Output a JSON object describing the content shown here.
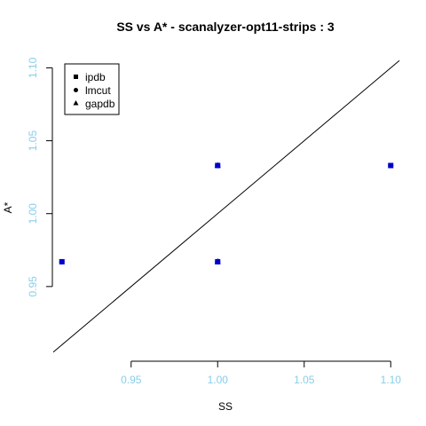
{
  "chart_data": {
    "type": "scatter",
    "title": "SS vs A* - scanalyzer-opt11-strips : 3",
    "xlabel": "SS",
    "ylabel": "A*",
    "xlim": [
      0.905,
      1.105
    ],
    "ylim": [
      0.9,
      1.11
    ],
    "x_ticks": [
      "0.95",
      "1.00",
      "1.05",
      "1.10"
    ],
    "y_ticks": [
      "0.95",
      "1.00",
      "1.05",
      "1.10"
    ],
    "series": [
      {
        "name": "ipdb",
        "marker": "square",
        "points": [
          [
            0.91,
            0.967
          ],
          [
            1.1,
            1.033
          ],
          [
            1.0,
            1.033
          ],
          [
            1.0,
            0.967
          ]
        ]
      },
      {
        "name": "lmcut",
        "marker": "circle",
        "points": [
          [
            0.91,
            0.967
          ],
          [
            1.1,
            1.033
          ],
          [
            1.0,
            1.033
          ],
          [
            1.0,
            0.967
          ]
        ]
      },
      {
        "name": "gapdb",
        "marker": "triangle",
        "points": [
          [
            1.0,
            1.033
          ],
          [
            1.0,
            0.967
          ]
        ]
      }
    ],
    "reference_line": "y = x",
    "legend_position": "top-left",
    "grid": false,
    "colors": {
      "points": "#0000cd",
      "tick_labels": "#87ceeb",
      "axes": "#000000"
    }
  }
}
